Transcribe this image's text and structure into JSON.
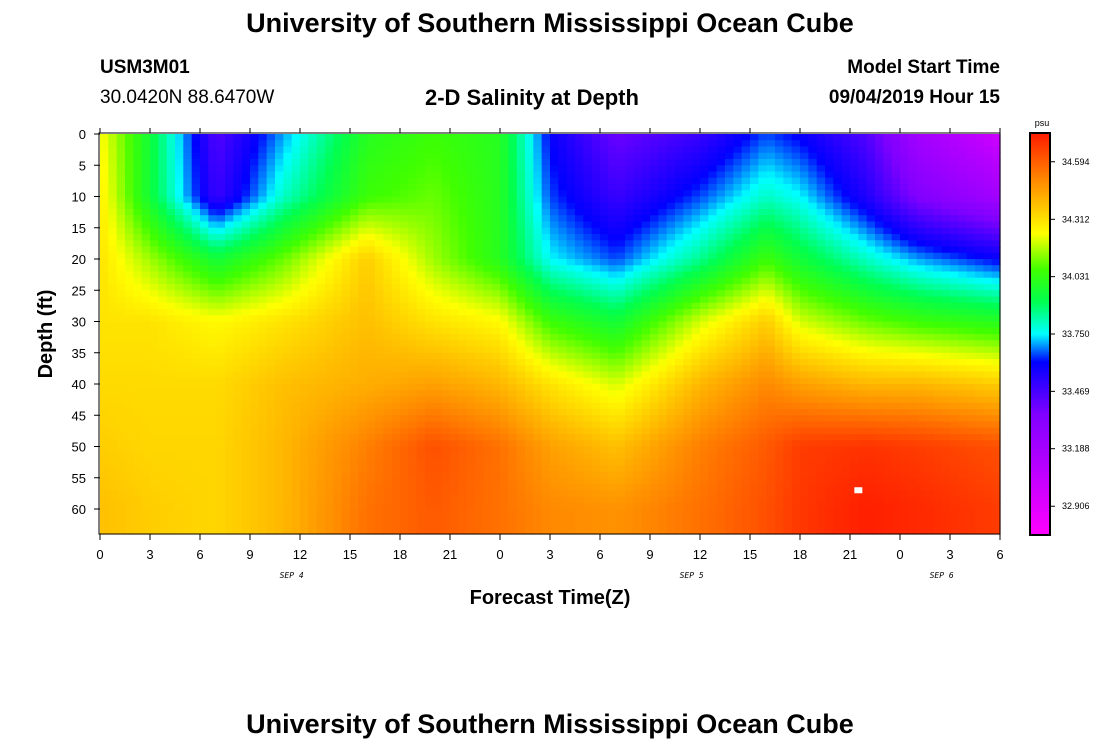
{
  "header": {
    "title": "University of Southern Mississippi Ocean Cube",
    "station": "USM3M01",
    "coords": "30.0420N 88.6470W",
    "plot_title": "2-D Salinity at Depth",
    "model_start_label": "Model Start Time",
    "model_start_value": "09/04/2019 Hour 15"
  },
  "footer": {
    "title": "University of Southern Mississippi Ocean Cube"
  },
  "chart_data": {
    "type": "heatmap",
    "title": "2-D Salinity at Depth",
    "xlabel": "Forecast Time(Z)",
    "ylabel": "Depth (ft)",
    "x_ticks": [
      "0",
      "3",
      "6",
      "9",
      "12",
      "15",
      "18",
      "21",
      "0",
      "3",
      "6",
      "9",
      "12",
      "15",
      "18",
      "21",
      "0",
      "3",
      "6"
    ],
    "x_hours_range": [
      0,
      54
    ],
    "date_labels": [
      {
        "text": "SEP 4",
        "hour": 11.5
      },
      {
        "text": "SEP 5",
        "hour": 35.5
      },
      {
        "text": "SEP 6",
        "hour": 50.5
      }
    ],
    "y_ticks": [
      "0",
      "5",
      "10",
      "15",
      "20",
      "25",
      "30",
      "35",
      "40",
      "45",
      "50",
      "55",
      "60"
    ],
    "ylim": [
      0,
      64
    ],
    "colorbar": {
      "units": "psu",
      "range": [
        32.77,
        34.73
      ],
      "labels": [
        "34.594",
        "34.312",
        "34.031",
        "33.750",
        "33.469",
        "33.188",
        "32.906"
      ]
    },
    "field_hours": [
      0,
      3,
      7,
      11,
      16,
      20,
      24,
      27,
      31,
      36,
      40,
      42,
      46,
      49,
      54
    ],
    "field_depths": [
      0,
      10,
      20,
      30,
      40,
      50,
      60
    ],
    "field_values": [
      [
        34.25,
        33.95,
        33.45,
        33.7,
        34.0,
        34.05,
        34.0,
        33.6,
        33.4,
        33.5,
        33.65,
        33.6,
        33.45,
        33.2,
        33.0
      ],
      [
        34.28,
        33.95,
        33.5,
        33.8,
        34.05,
        34.1,
        34.0,
        33.65,
        33.5,
        33.65,
        33.8,
        33.75,
        33.55,
        33.35,
        33.2
      ],
      [
        34.3,
        34.15,
        33.95,
        34.1,
        34.35,
        34.15,
        34.0,
        33.75,
        33.65,
        33.85,
        34.05,
        33.95,
        33.8,
        33.7,
        33.6
      ],
      [
        34.3,
        34.3,
        34.25,
        34.3,
        34.38,
        34.3,
        34.25,
        34.05,
        33.95,
        34.2,
        34.35,
        34.2,
        34.1,
        34.05,
        34.0
      ],
      [
        34.32,
        34.32,
        34.32,
        34.38,
        34.42,
        34.45,
        34.4,
        34.3,
        34.2,
        34.4,
        34.5,
        34.45,
        34.4,
        34.4,
        34.35
      ],
      [
        34.35,
        34.33,
        34.33,
        34.4,
        34.52,
        34.62,
        34.55,
        34.45,
        34.38,
        34.52,
        34.6,
        34.66,
        34.68,
        34.66,
        34.62
      ],
      [
        34.38,
        34.35,
        34.33,
        34.4,
        34.55,
        34.6,
        34.55,
        34.5,
        34.48,
        34.55,
        34.62,
        34.67,
        34.72,
        34.7,
        34.66
      ]
    ],
    "markers": [
      {
        "hour": 45.5,
        "depth": 57,
        "label": "white-square"
      }
    ]
  }
}
